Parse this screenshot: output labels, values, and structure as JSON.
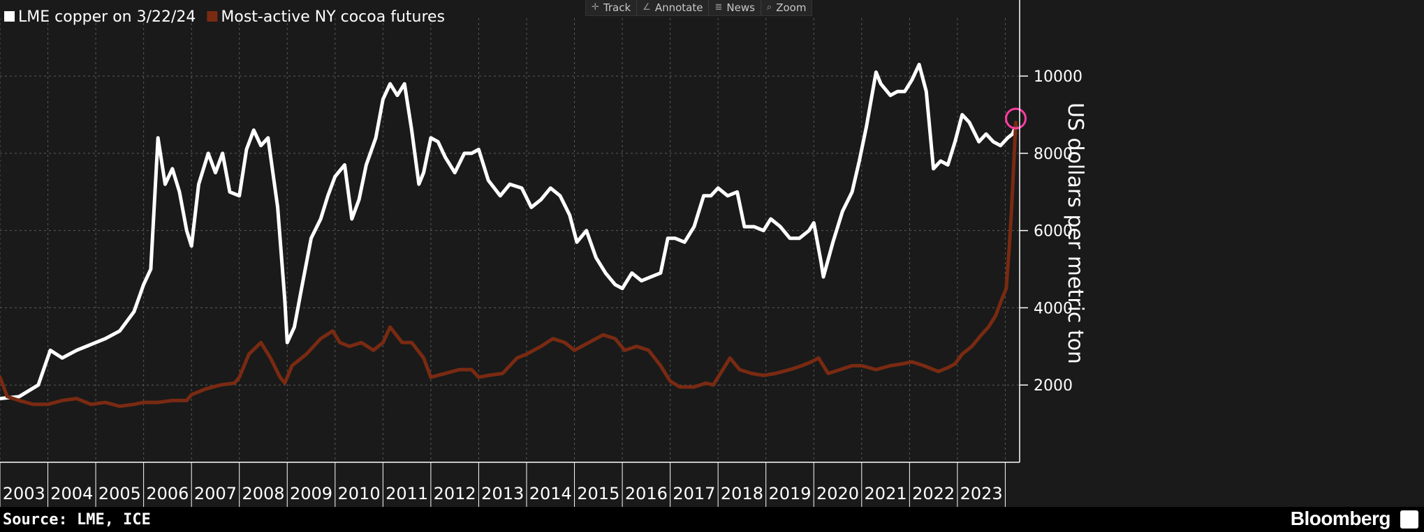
{
  "toolbar": [
    {
      "label": "Track",
      "icon": "crosshair-icon"
    },
    {
      "label": "Annotate",
      "icon": "pencil-icon"
    },
    {
      "label": "News",
      "icon": "news-icon"
    },
    {
      "label": "Zoom",
      "icon": "magnifier-icon"
    }
  ],
  "footer": {
    "source": "Source: LME, ICE",
    "brand": "Bloomberg"
  },
  "chart_data": {
    "type": "line",
    "title": "",
    "ylabel": "US dollars per metric ton",
    "xlabel": "",
    "ylim": [
      0,
      11500
    ],
    "yticks": [
      2000,
      4000,
      6000,
      8000,
      10000
    ],
    "categories": [
      "2003",
      "2004",
      "2005",
      "2006",
      "2007",
      "2008",
      "2009",
      "2010",
      "2011",
      "2012",
      "2013",
      "2014",
      "2015",
      "2016",
      "2017",
      "2018",
      "2019",
      "2020",
      "2021",
      "2022",
      "2023"
    ],
    "x_range": [
      2003.0,
      2024.3
    ],
    "grid": true,
    "legend_position": "top-left",
    "series": [
      {
        "name": "LME copper on 3/22/24",
        "color": "#ffffff",
        "points": [
          [
            2003.0,
            1650
          ],
          [
            2003.4,
            1700
          ],
          [
            2003.8,
            2000
          ],
          [
            2004.05,
            2900
          ],
          [
            2004.3,
            2700
          ],
          [
            2004.6,
            2900
          ],
          [
            2004.9,
            3050
          ],
          [
            2005.2,
            3200
          ],
          [
            2005.5,
            3400
          ],
          [
            2005.8,
            3900
          ],
          [
            2006.0,
            4600
          ],
          [
            2006.15,
            5000
          ],
          [
            2006.3,
            8400
          ],
          [
            2006.45,
            7200
          ],
          [
            2006.6,
            7600
          ],
          [
            2006.75,
            7000
          ],
          [
            2006.9,
            6000
          ],
          [
            2007.0,
            5600
          ],
          [
            2007.15,
            7200
          ],
          [
            2007.35,
            8000
          ],
          [
            2007.5,
            7500
          ],
          [
            2007.65,
            8000
          ],
          [
            2007.8,
            7000
          ],
          [
            2008.0,
            6900
          ],
          [
            2008.15,
            8100
          ],
          [
            2008.3,
            8600
          ],
          [
            2008.45,
            8200
          ],
          [
            2008.6,
            8400
          ],
          [
            2008.8,
            6600
          ],
          [
            2008.95,
            4200
          ],
          [
            2009.0,
            3100
          ],
          [
            2009.15,
            3500
          ],
          [
            2009.3,
            4500
          ],
          [
            2009.5,
            5800
          ],
          [
            2009.7,
            6300
          ],
          [
            2009.85,
            6900
          ],
          [
            2010.0,
            7400
          ],
          [
            2010.2,
            7700
          ],
          [
            2010.35,
            6300
          ],
          [
            2010.5,
            6800
          ],
          [
            2010.65,
            7700
          ],
          [
            2010.85,
            8400
          ],
          [
            2011.0,
            9400
          ],
          [
            2011.15,
            9800
          ],
          [
            2011.3,
            9500
          ],
          [
            2011.45,
            9800
          ],
          [
            2011.6,
            8600
          ],
          [
            2011.75,
            7200
          ],
          [
            2011.85,
            7500
          ],
          [
            2012.0,
            8400
          ],
          [
            2012.15,
            8300
          ],
          [
            2012.3,
            7900
          ],
          [
            2012.5,
            7500
          ],
          [
            2012.7,
            8000
          ],
          [
            2012.85,
            8000
          ],
          [
            2013.0,
            8100
          ],
          [
            2013.2,
            7300
          ],
          [
            2013.45,
            6900
          ],
          [
            2013.65,
            7200
          ],
          [
            2013.9,
            7100
          ],
          [
            2014.1,
            6600
          ],
          [
            2014.3,
            6800
          ],
          [
            2014.5,
            7100
          ],
          [
            2014.7,
            6900
          ],
          [
            2014.9,
            6400
          ],
          [
            2015.05,
            5700
          ],
          [
            2015.25,
            6000
          ],
          [
            2015.45,
            5300
          ],
          [
            2015.65,
            4900
          ],
          [
            2015.85,
            4600
          ],
          [
            2016.0,
            4500
          ],
          [
            2016.2,
            4900
          ],
          [
            2016.4,
            4700
          ],
          [
            2016.6,
            4800
          ],
          [
            2016.8,
            4900
          ],
          [
            2016.95,
            5800
          ],
          [
            2017.1,
            5800
          ],
          [
            2017.3,
            5700
          ],
          [
            2017.5,
            6100
          ],
          [
            2017.7,
            6900
          ],
          [
            2017.85,
            6900
          ],
          [
            2018.0,
            7100
          ],
          [
            2018.2,
            6900
          ],
          [
            2018.4,
            7000
          ],
          [
            2018.55,
            6100
          ],
          [
            2018.75,
            6100
          ],
          [
            2018.95,
            6000
          ],
          [
            2019.1,
            6300
          ],
          [
            2019.3,
            6100
          ],
          [
            2019.5,
            5800
          ],
          [
            2019.7,
            5800
          ],
          [
            2019.9,
            6000
          ],
          [
            2020.0,
            6200
          ],
          [
            2020.15,
            5200
          ],
          [
            2020.2,
            4800
          ],
          [
            2020.4,
            5700
          ],
          [
            2020.6,
            6500
          ],
          [
            2020.8,
            7000
          ],
          [
            2020.95,
            7800
          ],
          [
            2021.1,
            8700
          ],
          [
            2021.3,
            10100
          ],
          [
            2021.4,
            9800
          ],
          [
            2021.6,
            9500
          ],
          [
            2021.75,
            9600
          ],
          [
            2021.9,
            9600
          ],
          [
            2022.05,
            9900
          ],
          [
            2022.2,
            10300
          ],
          [
            2022.35,
            9600
          ],
          [
            2022.5,
            7600
          ],
          [
            2022.65,
            7800
          ],
          [
            2022.8,
            7700
          ],
          [
            2022.95,
            8300
          ],
          [
            2023.1,
            9000
          ],
          [
            2023.25,
            8800
          ],
          [
            2023.45,
            8300
          ],
          [
            2023.6,
            8500
          ],
          [
            2023.75,
            8300
          ],
          [
            2023.9,
            8200
          ],
          [
            2024.05,
            8400
          ],
          [
            2024.15,
            8500
          ],
          [
            2024.22,
            8700
          ]
        ]
      },
      {
        "name": "Most-active NY cocoa futures",
        "color": "#7a2a12",
        "points": [
          [
            2003.0,
            2200
          ],
          [
            2003.15,
            1700
          ],
          [
            2003.4,
            1600
          ],
          [
            2003.7,
            1500
          ],
          [
            2004.0,
            1500
          ],
          [
            2004.3,
            1600
          ],
          [
            2004.6,
            1650
          ],
          [
            2004.9,
            1500
          ],
          [
            2005.2,
            1550
          ],
          [
            2005.5,
            1450
          ],
          [
            2005.8,
            1500
          ],
          [
            2006.0,
            1550
          ],
          [
            2006.3,
            1550
          ],
          [
            2006.6,
            1600
          ],
          [
            2006.9,
            1600
          ],
          [
            2007.0,
            1750
          ],
          [
            2007.3,
            1900
          ],
          [
            2007.6,
            2000
          ],
          [
            2007.9,
            2050
          ],
          [
            2008.0,
            2200
          ],
          [
            2008.2,
            2800
          ],
          [
            2008.45,
            3100
          ],
          [
            2008.65,
            2700
          ],
          [
            2008.85,
            2200
          ],
          [
            2008.95,
            2050
          ],
          [
            2009.1,
            2500
          ],
          [
            2009.4,
            2800
          ],
          [
            2009.7,
            3200
          ],
          [
            2009.95,
            3400
          ],
          [
            2010.1,
            3100
          ],
          [
            2010.3,
            3000
          ],
          [
            2010.55,
            3100
          ],
          [
            2010.8,
            2900
          ],
          [
            2011.0,
            3100
          ],
          [
            2011.15,
            3500
          ],
          [
            2011.4,
            3100
          ],
          [
            2011.6,
            3100
          ],
          [
            2011.85,
            2700
          ],
          [
            2012.0,
            2200
          ],
          [
            2012.3,
            2300
          ],
          [
            2012.6,
            2400
          ],
          [
            2012.85,
            2400
          ],
          [
            2013.0,
            2200
          ],
          [
            2013.2,
            2250
          ],
          [
            2013.5,
            2300
          ],
          [
            2013.8,
            2700
          ],
          [
            2014.0,
            2800
          ],
          [
            2014.3,
            3000
          ],
          [
            2014.55,
            3200
          ],
          [
            2014.8,
            3100
          ],
          [
            2015.0,
            2900
          ],
          [
            2015.3,
            3100
          ],
          [
            2015.6,
            3300
          ],
          [
            2015.85,
            3200
          ],
          [
            2016.05,
            2900
          ],
          [
            2016.3,
            3000
          ],
          [
            2016.55,
            2900
          ],
          [
            2016.8,
            2500
          ],
          [
            2017.0,
            2100
          ],
          [
            2017.2,
            1950
          ],
          [
            2017.5,
            1950
          ],
          [
            2017.75,
            2050
          ],
          [
            2017.9,
            2000
          ],
          [
            2018.05,
            2300
          ],
          [
            2018.25,
            2700
          ],
          [
            2018.45,
            2400
          ],
          [
            2018.7,
            2300
          ],
          [
            2018.95,
            2250
          ],
          [
            2019.2,
            2300
          ],
          [
            2019.5,
            2400
          ],
          [
            2019.75,
            2500
          ],
          [
            2019.95,
            2600
          ],
          [
            2020.1,
            2700
          ],
          [
            2020.3,
            2300
          ],
          [
            2020.55,
            2400
          ],
          [
            2020.8,
            2500
          ],
          [
            2021.0,
            2500
          ],
          [
            2021.3,
            2400
          ],
          [
            2021.6,
            2500
          ],
          [
            2021.85,
            2550
          ],
          [
            2022.05,
            2600
          ],
          [
            2022.3,
            2500
          ],
          [
            2022.6,
            2350
          ],
          [
            2022.8,
            2450
          ],
          [
            2022.95,
            2550
          ],
          [
            2023.1,
            2800
          ],
          [
            2023.3,
            3000
          ],
          [
            2023.5,
            3300
          ],
          [
            2023.65,
            3500
          ],
          [
            2023.8,
            3800
          ],
          [
            2023.92,
            4200
          ],
          [
            2024.02,
            4500
          ],
          [
            2024.08,
            5500
          ],
          [
            2024.13,
            6500
          ],
          [
            2024.18,
            7800
          ],
          [
            2024.22,
            8800
          ]
        ]
      }
    ],
    "highlight_marker": {
      "x": 2024.22,
      "y": 8900,
      "color": "#ff3da0"
    }
  }
}
